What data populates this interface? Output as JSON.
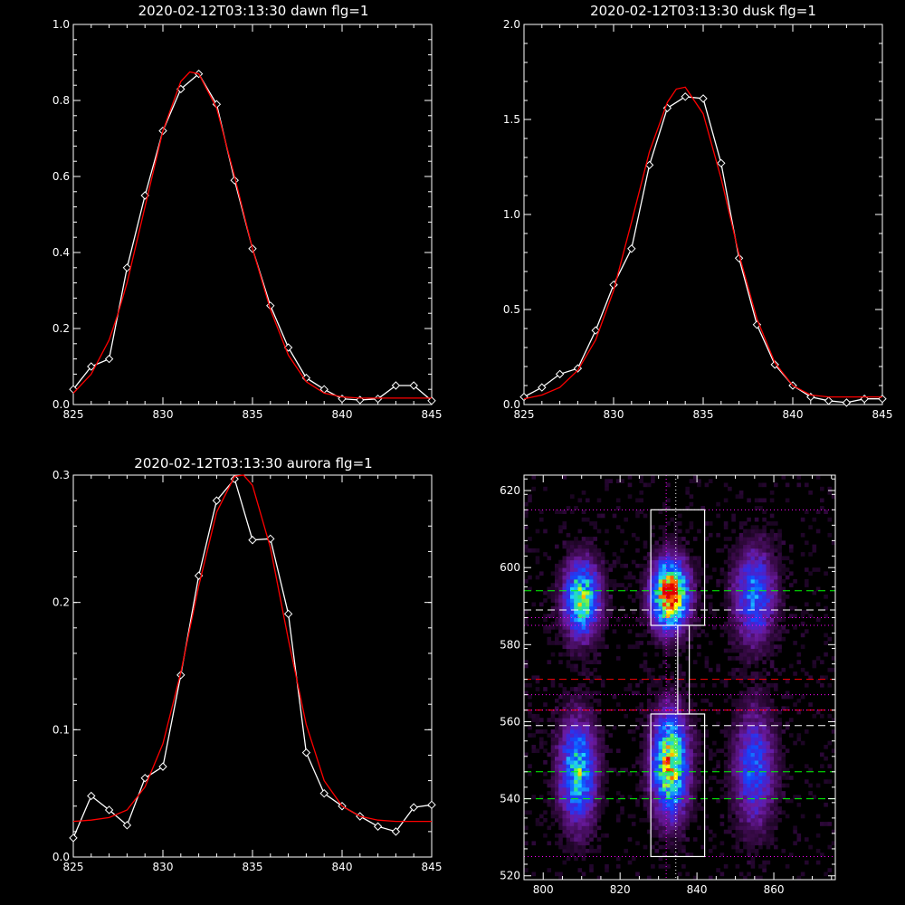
{
  "chart_data": [
    {
      "id": "dawn",
      "type": "line",
      "title": "2020-02-12T03:13:30 dawn flg=1",
      "xlim": [
        825,
        845
      ],
      "ylim": [
        0,
        1.0
      ],
      "xticks": [
        825,
        830,
        835,
        840,
        845
      ],
      "yticks": [
        0.0,
        0.2,
        0.4,
        0.6,
        0.8,
        1.0
      ],
      "ytick_labels": [
        "0.0",
        "0.2",
        "0.4",
        "0.6",
        "0.8",
        "1.0"
      ],
      "series": [
        {
          "color": "#ffffff",
          "marker": "diamond",
          "x": [
            825,
            826,
            827,
            828,
            829,
            830,
            831,
            832,
            833,
            834,
            835,
            836,
            837,
            838,
            839,
            840,
            841,
            842,
            843,
            844,
            845
          ],
          "y": [
            0.04,
            0.1,
            0.12,
            0.36,
            0.55,
            0.72,
            0.83,
            0.87,
            0.79,
            0.59,
            0.41,
            0.26,
            0.15,
            0.07,
            0.04,
            0.015,
            0.012,
            0.015,
            0.05,
            0.05,
            0.01
          ]
        },
        {
          "color": "#ff0000",
          "marker": "none",
          "x": [
            825,
            826,
            827,
            827.5,
            828,
            829,
            830,
            831,
            831.5,
            832,
            833,
            834,
            835,
            836,
            837,
            838,
            839,
            840,
            841,
            842,
            843,
            844,
            845
          ],
          "y": [
            0.03,
            0.08,
            0.17,
            0.24,
            0.32,
            0.52,
            0.72,
            0.85,
            0.875,
            0.87,
            0.78,
            0.6,
            0.41,
            0.25,
            0.13,
            0.06,
            0.03,
            0.02,
            0.017,
            0.017,
            0.017,
            0.017,
            0.017
          ]
        }
      ]
    },
    {
      "id": "dusk",
      "type": "line",
      "title": "2020-02-12T03:13:30 dusk flg=1",
      "xlim": [
        825,
        845
      ],
      "ylim": [
        0,
        2.0
      ],
      "xticks": [
        825,
        830,
        835,
        840,
        845
      ],
      "yticks": [
        0.0,
        0.5,
        1.0,
        1.5,
        2.0
      ],
      "ytick_labels": [
        "0.0",
        "0.5",
        "1.0",
        "1.5",
        "2.0"
      ],
      "series": [
        {
          "color": "#ffffff",
          "marker": "diamond",
          "x": [
            825,
            826,
            827,
            828,
            829,
            830,
            831,
            832,
            833,
            834,
            835,
            836,
            837,
            838,
            839,
            840,
            841,
            842,
            843,
            844,
            845
          ],
          "y": [
            0.04,
            0.09,
            0.16,
            0.19,
            0.39,
            0.63,
            0.82,
            1.26,
            1.56,
            1.62,
            1.61,
            1.27,
            0.77,
            0.42,
            0.21,
            0.1,
            0.04,
            0.02,
            0.01,
            0.03,
            0.03
          ]
        },
        {
          "color": "#ff0000",
          "marker": "none",
          "x": [
            825,
            826,
            827,
            828,
            829,
            830,
            831,
            832,
            833,
            833.5,
            834,
            835,
            836,
            837,
            838,
            839,
            840,
            841,
            842,
            843,
            844,
            845
          ],
          "y": [
            0.03,
            0.05,
            0.09,
            0.18,
            0.34,
            0.6,
            0.96,
            1.33,
            1.59,
            1.66,
            1.67,
            1.53,
            1.19,
            0.79,
            0.45,
            0.22,
            0.1,
            0.05,
            0.04,
            0.04,
            0.04,
            0.04
          ]
        }
      ]
    },
    {
      "id": "aurora",
      "type": "line",
      "title": "2020-02-12T03:13:30 aurora flg=1",
      "xlim": [
        825,
        845
      ],
      "ylim": [
        0,
        0.3
      ],
      "xticks": [
        825,
        830,
        835,
        840,
        845
      ],
      "yticks": [
        0.0,
        0.1,
        0.2,
        0.3
      ],
      "ytick_labels": [
        "0.0",
        "0.1",
        "0.2",
        "0.3"
      ],
      "series": [
        {
          "color": "#ffffff",
          "marker": "diamond",
          "x": [
            825,
            826,
            827,
            828,
            829,
            830,
            831,
            832,
            833,
            834,
            835,
            836,
            837,
            838,
            839,
            840,
            841,
            842,
            843,
            844,
            845
          ],
          "y": [
            0.015,
            0.048,
            0.037,
            0.025,
            0.062,
            0.071,
            0.143,
            0.221,
            0.28,
            0.297,
            0.249,
            0.25,
            0.191,
            0.082,
            0.05,
            0.04,
            0.032,
            0.024,
            0.02,
            0.039,
            0.041
          ]
        },
        {
          "color": "#ff0000",
          "marker": "none",
          "x": [
            825,
            826,
            827,
            828,
            829,
            830,
            831,
            832,
            833,
            834,
            834.5,
            835,
            836,
            837,
            838,
            839,
            840,
            841,
            842,
            843,
            844,
            845
          ],
          "y": [
            0.028,
            0.029,
            0.031,
            0.037,
            0.055,
            0.089,
            0.145,
            0.213,
            0.271,
            0.299,
            0.3,
            0.292,
            0.243,
            0.171,
            0.104,
            0.06,
            0.04,
            0.032,
            0.029,
            0.028,
            0.028,
            0.028
          ]
        }
      ]
    },
    {
      "id": "image",
      "type": "heatmap",
      "title": "",
      "xlim": [
        795,
        876
      ],
      "ylim": [
        519,
        624
      ],
      "xticks": [
        800,
        820,
        840,
        860
      ],
      "yticks": [
        520,
        540,
        560,
        580,
        600,
        620
      ],
      "ytick_labels": [
        "520",
        "540",
        "560",
        "580",
        "600",
        "620"
      ],
      "colorscale": [
        "#000000",
        "#3a0a4a",
        "#6a1aa0",
        "#3a28e0",
        "#0e4cff",
        "#1fd0ff",
        "#2ce87a",
        "#ffff00",
        "#ff7a00",
        "#e00000"
      ],
      "blobs": [
        {
          "x": 810,
          "y": 592,
          "sx": 3.2,
          "sy": 6.5,
          "peak": 0.68
        },
        {
          "x": 809,
          "y": 547,
          "sx": 3.2,
          "sy": 9,
          "peak": 0.6
        },
        {
          "x": 833,
          "y": 593,
          "sx": 3.2,
          "sy": 6,
          "peak": 1.0
        },
        {
          "x": 833,
          "y": 549,
          "sx": 3.2,
          "sy": 9,
          "peak": 0.78
        },
        {
          "x": 855,
          "y": 593,
          "sx": 3.6,
          "sy": 8,
          "peak": 0.45
        },
        {
          "x": 855,
          "y": 548,
          "sx": 3.6,
          "sy": 10,
          "peak": 0.4
        }
      ],
      "boxes": [
        {
          "x0": 828,
          "x1": 842,
          "y0": 585,
          "y1": 615
        },
        {
          "x0": 828,
          "x1": 842,
          "y0": 525,
          "y1": 562
        },
        {
          "x0": 835,
          "x1": 838,
          "y0": 562,
          "y1": 585
        }
      ],
      "hlines": [
        {
          "y": 615,
          "color": "#ff00ff",
          "dash": "dot"
        },
        {
          "y": 594,
          "color": "#00ff00",
          "dash": "dash"
        },
        {
          "y": 589,
          "color": "#ffffff",
          "dash": "dash"
        },
        {
          "y": 587,
          "color": "#ff00ff",
          "dash": "dot"
        },
        {
          "y": 585,
          "color": "#ff00ff",
          "dash": "dot"
        },
        {
          "y": 571,
          "color": "#ff0000",
          "dash": "dash"
        },
        {
          "y": 567,
          "color": "#ff00ff",
          "dash": "dot"
        },
        {
          "y": 563,
          "color": "#ff0000",
          "dash": "dash"
        },
        {
          "y": 563,
          "color": "#ff00ff",
          "dash": "dot"
        },
        {
          "y": 559,
          "color": "#ffffff",
          "dash": "dash"
        },
        {
          "y": 547,
          "color": "#00ff00",
          "dash": "dash"
        },
        {
          "y": 540,
          "color": "#00ff00",
          "dash": "dash"
        },
        {
          "y": 525,
          "color": "#ff00ff",
          "dash": "dot"
        }
      ],
      "vlines": [
        {
          "x": 832,
          "color": "#ff00ff",
          "dash": "dot"
        },
        {
          "x": 834.5,
          "color": "#ffffff",
          "dash": "dot"
        }
      ]
    }
  ]
}
